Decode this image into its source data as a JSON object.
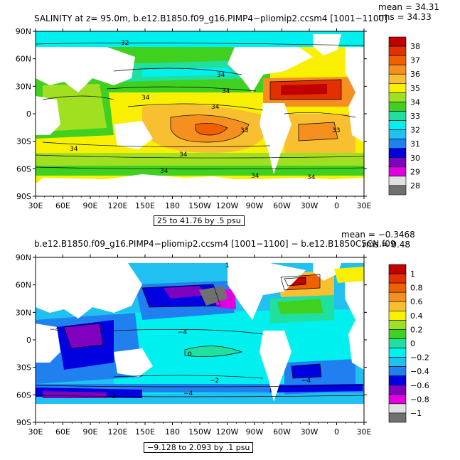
{
  "panels": [
    {
      "title": "SALINITY at z=   95.0m, b.e12.B1850.f09_g16.PIMP4−pliomip2.ccsm4 [1001−1100]",
      "mean": "mean = 34.31",
      "rms": "rms = 34.33",
      "range": "25 to 41.76 by .5 psu",
      "lat_labels": [
        "90N",
        "60N",
        "30N",
        "0",
        "30S",
        "60S",
        "90S"
      ],
      "lon_labels": [
        "30E",
        "60E",
        "90E",
        "120E",
        "150E",
        "180",
        "150W",
        "120W",
        "90W",
        "60W",
        "30W",
        "0",
        "30E"
      ],
      "colorbar_labels": [
        "38",
        "37",
        "36",
        "35",
        "34",
        "33",
        "32",
        "31",
        "30",
        "29",
        "28"
      ],
      "colorbar_colors": [
        "#c00000",
        "#e23000",
        "#f06000",
        "#f59020",
        "#f8c030",
        "#f8f000",
        "#a0e020",
        "#40d020",
        "#20e0a0",
        "#00f0f0",
        "#20c0f0",
        "#2080f0",
        "#0000e0",
        "#8000c0",
        "#e000e0",
        "#e0e0e0",
        "#707070"
      ],
      "contour_labels": [
        "32",
        "34",
        "34",
        "34",
        "33",
        "34",
        "33",
        "34",
        "34",
        "34",
        "34",
        "34"
      ]
    },
    {
      "title": "b.e12.B1850.f09_g16.PIMP4−pliomip2.ccsm4 [1001−1100]  − b.e12.B1850C5CN.f09",
      "mean": "mean = −0.3468",
      "rms": "rms = 0.48",
      "range": "−9.128 to 2.093 by .1 psu",
      "lat_labels": [
        "90N",
        "60N",
        "30N",
        "0",
        "30S",
        "60S",
        "90S"
      ],
      "lon_labels": [
        "30E",
        "60E",
        "90E",
        "120E",
        "150E",
        "180",
        "150W",
        "120W",
        "90W",
        "60W",
        "30W",
        "0",
        "30E"
      ],
      "colorbar_labels": [
        "1",
        "0.8",
        "0.6",
        "0.4",
        "0.2",
        "0",
        "−0.2",
        "−0.4",
        "−0.6",
        "−0.8",
        "−1"
      ],
      "colorbar_colors": [
        "#c00000",
        "#e23000",
        "#f06000",
        "#f59020",
        "#f8c030",
        "#f8f000",
        "#a0e020",
        "#40d020",
        "#20e0a0",
        "#00f0f0",
        "#20c0f0",
        "#2080f0",
        "#0000e0",
        "#8000c0",
        "#e000e0",
        "#e0e0e0",
        "#707070"
      ],
      "contour_labels": [
        "1",
        "−4",
        "−4",
        "0",
        "−2",
        "−4",
        "−4",
        "−2"
      ]
    }
  ]
}
